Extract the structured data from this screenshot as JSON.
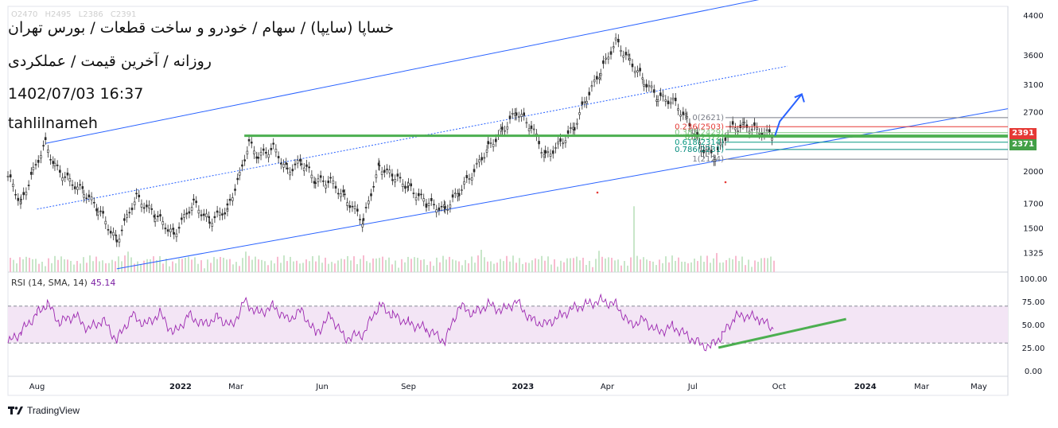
{
  "header": {
    "title": "خساپا (سایپا) / سهام / خودرو و ساخت قطعات / بورس تهران",
    "subtitle": "روزانه / آخرین قیمت / عملکردی",
    "datetime": "1402/07/03 16:37",
    "author": "tahlilnameh",
    "ohlc": {
      "open": "O2470",
      "high": "H2495",
      "low": "L2386",
      "close": "C2391"
    }
  },
  "branding": {
    "logo_text": "TradingView",
    "logo_icon": "tradingview-icon"
  },
  "colors": {
    "candle": "#2a2a2a",
    "channel": "#2962ff",
    "support": "#4caf50",
    "rsi_line": "#9c27b0",
    "rsi_band": "#f3e5f5",
    "badge_red": "#e53935",
    "badge_green": "#43a047",
    "arrow": "#2962ff"
  },
  "price_axis": {
    "labels": [
      "4400",
      "3600",
      "3100",
      "2700",
      "2000",
      "1700",
      "1500",
      "1325"
    ],
    "badges": [
      {
        "value": "2391",
        "color": "#e53935"
      },
      {
        "value": "2371",
        "color": "#43a047"
      }
    ]
  },
  "time_axis": {
    "labels": [
      "Aug",
      "2022",
      "Mar",
      "Jun",
      "Sep",
      "2023",
      "Apr",
      "Jul",
      "Oct",
      "2024",
      "Mar",
      "May"
    ]
  },
  "fibonacci": {
    "levels": [
      {
        "label": "0(2621)",
        "price": 2621,
        "color": "#787b86"
      },
      {
        "label": "0.236(2503)",
        "price": 2503,
        "color": "#e53935"
      },
      {
        "label": "0.382(2429)",
        "price": 2429,
        "color": "#81c784"
      },
      {
        "label": "0.5(2372)",
        "price": 2372,
        "color": "#4caf50"
      },
      {
        "label": "0.618(2314)",
        "price": 2314,
        "color": "#089981"
      },
      {
        "label": "0.786(2231)",
        "price": 2231,
        "color": "#00897b"
      },
      {
        "label": "1(2124)",
        "price": 2124,
        "color": "#787b86"
      }
    ]
  },
  "rsi": {
    "legend": "RSI (14, SMA, 14)",
    "value": "45.14",
    "axis_labels": [
      "100.00",
      "75.00",
      "50.00",
      "25.00",
      "0.00"
    ],
    "upper": 70,
    "lower": 30
  },
  "chart_data": {
    "type": "line",
    "symbol": "خساپا",
    "timeframe": "daily",
    "y_scale": "log",
    "ylim": [
      1200,
      4600
    ],
    "x_range": [
      "2021-07-01",
      "2024-06-01"
    ],
    "price_path": [
      [
        "2021-07-01",
        1950
      ],
      [
        "2021-07-15",
        1700
      ],
      [
        "2021-07-28",
        2000
      ],
      [
        "2021-08-10",
        2300
      ],
      [
        "2021-08-20",
        2050
      ],
      [
        "2021-09-05",
        1900
      ],
      [
        "2021-09-20",
        1800
      ],
      [
        "2021-10-05",
        1650
      ],
      [
        "2021-10-25",
        1400
      ],
      [
        "2021-11-15",
        1750
      ],
      [
        "2021-12-05",
        1600
      ],
      [
        "2021-12-25",
        1450
      ],
      [
        "2022-01-15",
        1700
      ],
      [
        "2022-02-01",
        1550
      ],
      [
        "2022-02-20",
        1650
      ],
      [
        "2022-03-05",
        1950
      ],
      [
        "2022-03-15",
        2300
      ],
      [
        "2022-03-25",
        2150
      ],
      [
        "2022-04-10",
        2250
      ],
      [
        "2022-04-25",
        2000
      ],
      [
        "2022-05-10",
        2100
      ],
      [
        "2022-05-25",
        1900
      ],
      [
        "2022-06-10",
        1900
      ],
      [
        "2022-06-25",
        1750
      ],
      [
        "2022-07-15",
        1550
      ],
      [
        "2022-08-01",
        2050
      ],
      [
        "2022-08-15",
        1950
      ],
      [
        "2022-09-01",
        1850
      ],
      [
        "2022-09-20",
        1700
      ],
      [
        "2022-10-10",
        1650
      ],
      [
        "2022-10-25",
        1800
      ],
      [
        "2022-11-10",
        2000
      ],
      [
        "2022-11-25",
        2250
      ],
      [
        "2022-12-10",
        2450
      ],
      [
        "2022-12-25",
        2700
      ],
      [
        "2023-01-10",
        2500
      ],
      [
        "2023-01-25",
        2150
      ],
      [
        "2023-02-10",
        2300
      ],
      [
        "2023-02-25",
        2500
      ],
      [
        "2023-03-10",
        2900
      ],
      [
        "2023-03-25",
        3300
      ],
      [
        "2023-04-10",
        3850
      ],
      [
        "2023-04-25",
        3500
      ],
      [
        "2023-05-10",
        3150
      ],
      [
        "2023-05-25",
        2900
      ],
      [
        "2023-06-10",
        2850
      ],
      [
        "2023-06-25",
        2600
      ],
      [
        "2023-07-10",
        2250
      ],
      [
        "2023-07-25",
        2150
      ],
      [
        "2023-08-10",
        2480
      ],
      [
        "2023-08-25",
        2520
      ],
      [
        "2023-09-10",
        2450
      ],
      [
        "2023-09-25",
        2391
      ]
    ],
    "support_line": {
      "price": 2391,
      "from": "2022-03-10",
      "to": "2023-09-25"
    },
    "channel": {
      "upper": {
        "from": [
          "2021-08-10",
          2300
        ],
        "to": [
          "2023-10-10",
          4900
        ]
      },
      "lower": {
        "from": [
          "2021-10-25",
          1220
        ],
        "to": [
          "2023-10-10",
          2450
        ]
      },
      "mid": {
        "from": [
          "2021-08-01",
          1650
        ],
        "to": [
          "2023-10-10",
          3400
        ]
      }
    },
    "rsi_series": [
      [
        "2021-07-01",
        30
      ],
      [
        "2021-07-15",
        42
      ],
      [
        "2021-08-01",
        62
      ],
      [
        "2021-08-12",
        73
      ],
      [
        "2021-08-25",
        52
      ],
      [
        "2021-09-10",
        60
      ],
      [
        "2021-09-25",
        45
      ],
      [
        "2021-10-10",
        55
      ],
      [
        "2021-10-25",
        33
      ],
      [
        "2021-11-10",
        60
      ],
      [
        "2021-11-25",
        50
      ],
      [
        "2021-12-10",
        62
      ],
      [
        "2021-12-25",
        40
      ],
      [
        "2022-01-10",
        60
      ],
      [
        "2022-01-25",
        50
      ],
      [
        "2022-02-10",
        58
      ],
      [
        "2022-02-25",
        48
      ],
      [
        "2022-03-10",
        75
      ],
      [
        "2022-03-25",
        62
      ],
      [
        "2022-04-10",
        70
      ],
      [
        "2022-04-25",
        55
      ],
      [
        "2022-05-10",
        65
      ],
      [
        "2022-05-25",
        40
      ],
      [
        "2022-06-10",
        60
      ],
      [
        "2022-06-25",
        35
      ],
      [
        "2022-07-15",
        40
      ],
      [
        "2022-08-01",
        72
      ],
      [
        "2022-08-15",
        60
      ],
      [
        "2022-09-01",
        52
      ],
      [
        "2022-09-20",
        45
      ],
      [
        "2022-10-10",
        32
      ],
      [
        "2022-10-25",
        70
      ],
      [
        "2022-11-10",
        62
      ],
      [
        "2022-11-25",
        72
      ],
      [
        "2022-12-10",
        65
      ],
      [
        "2022-12-25",
        75
      ],
      [
        "2023-01-10",
        55
      ],
      [
        "2023-01-25",
        50
      ],
      [
        "2023-02-10",
        60
      ],
      [
        "2023-02-25",
        68
      ],
      [
        "2023-03-10",
        72
      ],
      [
        "2023-03-25",
        76
      ],
      [
        "2023-04-10",
        72
      ],
      [
        "2023-04-25",
        50
      ],
      [
        "2023-05-10",
        55
      ],
      [
        "2023-05-25",
        42
      ],
      [
        "2023-06-10",
        48
      ],
      [
        "2023-06-25",
        38
      ],
      [
        "2023-07-10",
        28
      ],
      [
        "2023-07-20",
        26
      ],
      [
        "2023-08-01",
        38
      ],
      [
        "2023-08-15",
        58
      ],
      [
        "2023-08-25",
        60
      ],
      [
        "2023-09-10",
        56
      ],
      [
        "2023-09-25",
        45.14
      ]
    ],
    "annotations": {
      "rsi_trendline": {
        "from": [
          "2023-07-20",
          25
        ],
        "to": [
          "2023-12-20",
          56
        ]
      },
      "target_arrow": {
        "from": [
          "2023-09-25",
          2391
        ],
        "to": [
          "2023-10-10",
          2950
        ]
      }
    }
  }
}
